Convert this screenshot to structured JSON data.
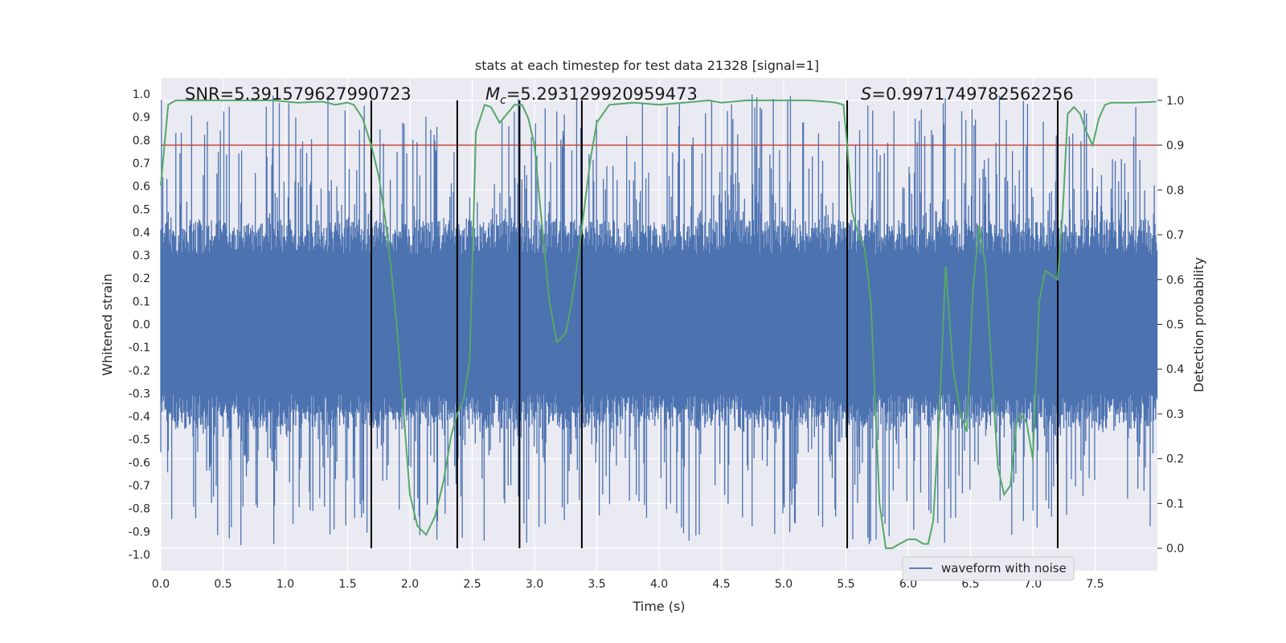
{
  "chart_data": {
    "type": "line",
    "title": "stats at each timestep for test data 21328 [signal=1]",
    "xlabel": "Time (s)",
    "ylabel": "Whitened strain",
    "ylabel_right": "Detection probability",
    "xlim": [
      0.0,
      8.0
    ],
    "ylim": [
      -1.07,
      1.07
    ],
    "ylim_right": [
      -0.05,
      1.05
    ],
    "x_ticks": [
      "0.0",
      "0.5",
      "1.0",
      "1.5",
      "2.0",
      "2.5",
      "3.0",
      "3.5",
      "4.0",
      "4.5",
      "5.0",
      "5.5",
      "6.0",
      "6.5",
      "7.0",
      "7.5"
    ],
    "x_tick_values": [
      0.0,
      0.5,
      1.0,
      1.5,
      2.0,
      2.5,
      3.0,
      3.5,
      4.0,
      4.5,
      5.0,
      5.5,
      6.0,
      6.5,
      7.0,
      7.5
    ],
    "y_ticks_left": [
      "1.0",
      "0.9",
      "0.8",
      "0.7",
      "0.6",
      "0.5",
      "0.4",
      "0.3",
      "0.2",
      "0.1",
      "0.0",
      "-0.1",
      "-0.2",
      "-0.3",
      "-0.4",
      "-0.5",
      "-0.6",
      "-0.7",
      "-0.8",
      "-0.9",
      "-1.0"
    ],
    "y_tick_values_left": [
      1.0,
      0.9,
      0.8,
      0.7,
      0.6,
      0.5,
      0.4,
      0.3,
      0.2,
      0.1,
      0.0,
      -0.1,
      -0.2,
      -0.3,
      -0.4,
      -0.5,
      -0.6,
      -0.7,
      -0.8,
      -0.9,
      -1.0
    ],
    "y_ticks_right": [
      "1.0",
      "0.9",
      "0.8",
      "0.7",
      "0.6",
      "0.5",
      "0.4",
      "0.3",
      "0.2",
      "0.1",
      "0.0"
    ],
    "y_tick_values_right": [
      1.0,
      0.9,
      0.8,
      0.7,
      0.6,
      0.5,
      0.4,
      0.3,
      0.2,
      0.1,
      0.0
    ],
    "annotations": {
      "snr": "SNR=5.391579627990723",
      "mc_symbol": "M",
      "mc_subscript": "c",
      "mc_value": "=5.293129920959473",
      "s_symbol": "S",
      "s_value": "=0.9971749782562256"
    },
    "legend": {
      "label": "waveform with noise",
      "location": "lower-right"
    },
    "threshold": {
      "value": 0.9,
      "axis": "right",
      "color": "#c0392b"
    },
    "vertical_lines": [
      1.69,
      2.38,
      2.88,
      3.38,
      5.51,
      7.2
    ],
    "series": [
      {
        "name": "waveform with noise",
        "axis": "left",
        "color": "#4c72b0",
        "kind": "noise",
        "x_range": [
          0.0,
          8.0
        ],
        "envelope": 0.38,
        "spike_max": 1.0,
        "spike_min": -0.96
      },
      {
        "name": "Detection probability",
        "axis": "right",
        "color": "#55a868",
        "x": [
          0.0,
          0.06,
          0.12,
          0.2,
          0.3,
          0.5,
          0.7,
          0.9,
          1.1,
          1.3,
          1.4,
          1.5,
          1.55,
          1.62,
          1.69,
          1.75,
          1.8,
          1.85,
          1.9,
          1.95,
          2.0,
          2.06,
          2.13,
          2.2,
          2.27,
          2.33,
          2.38,
          2.43,
          2.48,
          2.53,
          2.6,
          2.65,
          2.72,
          2.78,
          2.84,
          2.9,
          2.95,
          3.0,
          3.05,
          3.12,
          3.18,
          3.25,
          3.3,
          3.35,
          3.4,
          3.45,
          3.5,
          3.6,
          3.8,
          4.0,
          4.2,
          4.4,
          4.5,
          4.7,
          5.0,
          5.2,
          5.35,
          5.42,
          5.48,
          5.51,
          5.55,
          5.6,
          5.65,
          5.7,
          5.77,
          5.82,
          5.87,
          5.93,
          6.0,
          6.06,
          6.12,
          6.16,
          6.2,
          6.25,
          6.3,
          6.36,
          6.42,
          6.47,
          6.52,
          6.57,
          6.62,
          6.67,
          6.72,
          6.77,
          6.82,
          6.87,
          6.9,
          6.95,
          7.0,
          7.05,
          7.1,
          7.15,
          7.2,
          7.24,
          7.28,
          7.33,
          7.38,
          7.43,
          7.48,
          7.53,
          7.58,
          7.63,
          7.7,
          7.8,
          7.9,
          7.99
        ],
        "values": [
          0.81,
          0.99,
          1.0,
          1.0,
          1.0,
          1.0,
          1.0,
          1.0,
          0.995,
          0.997,
          0.99,
          0.995,
          0.99,
          0.96,
          0.9,
          0.83,
          0.74,
          0.62,
          0.48,
          0.3,
          0.12,
          0.05,
          0.03,
          0.07,
          0.15,
          0.25,
          0.3,
          0.33,
          0.42,
          0.93,
          0.99,
          0.985,
          0.95,
          0.97,
          0.99,
          0.99,
          0.96,
          0.9,
          0.75,
          0.55,
          0.46,
          0.48,
          0.55,
          0.65,
          0.76,
          0.87,
          0.95,
          0.99,
          0.995,
          0.99,
          0.995,
          1.0,
          0.995,
          1.0,
          1.0,
          1.0,
          0.997,
          0.995,
          0.99,
          0.9,
          0.75,
          0.7,
          0.67,
          0.55,
          0.1,
          0.0,
          0.0,
          0.01,
          0.02,
          0.02,
          0.01,
          0.01,
          0.06,
          0.3,
          0.63,
          0.4,
          0.3,
          0.26,
          0.58,
          0.72,
          0.63,
          0.4,
          0.18,
          0.12,
          0.14,
          0.28,
          0.3,
          0.28,
          0.2,
          0.55,
          0.62,
          0.61,
          0.6,
          0.75,
          0.97,
          0.985,
          0.97,
          0.93,
          0.9,
          0.96,
          0.99,
          0.995,
          0.995,
          0.995,
          0.996,
          0.997
        ]
      }
    ]
  }
}
